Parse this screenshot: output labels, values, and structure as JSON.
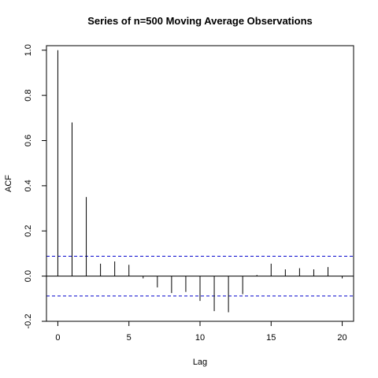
{
  "chart_data": {
    "type": "bar",
    "title": "Series of n=500 Moving Average Observations",
    "xlabel": "Lag",
    "ylabel": "ACF",
    "xlim": [
      -0.8,
      20.8
    ],
    "ylim": [
      -0.2,
      1.02
    ],
    "x_ticks": [
      0,
      5,
      10,
      15,
      20
    ],
    "x_tick_labels": [
      "0",
      "5",
      "10",
      "15",
      "20"
    ],
    "y_ticks": [
      -0.2,
      0.0,
      0.2,
      0.4,
      0.6,
      0.8,
      1.0
    ],
    "y_tick_labels": [
      "-0.2",
      "0.0",
      "0.2",
      "0.4",
      "0.6",
      "0.8",
      "1.0"
    ],
    "lags": [
      0,
      1,
      2,
      3,
      4,
      5,
      6,
      7,
      8,
      9,
      10,
      11,
      12,
      13,
      14,
      15,
      16,
      17,
      18,
      19,
      20
    ],
    "acf": [
      1.0,
      0.68,
      0.35,
      0.055,
      0.065,
      0.05,
      -0.01,
      -0.05,
      -0.075,
      -0.07,
      -0.11,
      -0.155,
      -0.16,
      -0.08,
      0.005,
      0.055,
      0.03,
      0.035,
      0.03,
      0.04,
      -0.01
    ],
    "confidence_bound": 0.088,
    "confidence_line_color": "#0000cc",
    "bar_color": "#000000",
    "grid": false
  }
}
